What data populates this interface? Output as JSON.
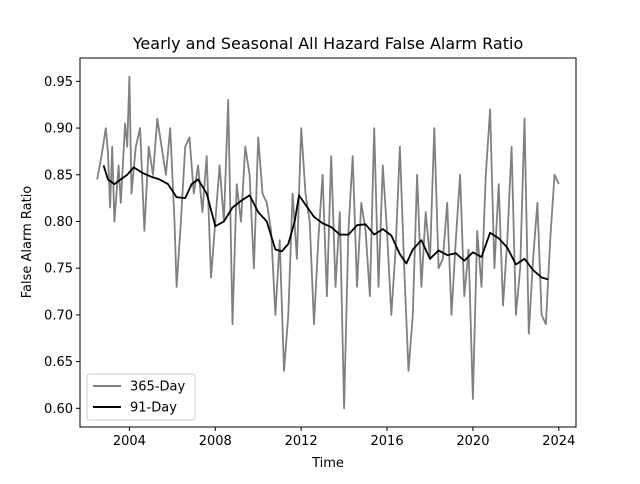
{
  "chart_data": {
    "type": "line",
    "title": "Yearly and Seasonal All Hazard False Alarm Ratio",
    "xlabel": "Time",
    "ylabel": "False Alarm Ratio",
    "xlim": [
      2001.7,
      2024.8
    ],
    "ylim": [
      0.58,
      0.975
    ],
    "x_ticks": [
      2004,
      2008,
      2012,
      2016,
      2020,
      2024
    ],
    "x_tick_labels": [
      "2004",
      "2008",
      "2012",
      "2016",
      "2020",
      "2024"
    ],
    "y_ticks": [
      0.6,
      0.65,
      0.7,
      0.75,
      0.8,
      0.85,
      0.9,
      0.95
    ],
    "y_tick_labels": [
      "0.60",
      "0.65",
      "0.70",
      "0.75",
      "0.80",
      "0.85",
      "0.90",
      "0.95"
    ],
    "grid": false,
    "legend_position": "lower-left",
    "series": [
      {
        "name": "365-Day",
        "color": "#808080",
        "x": [
          2002.5,
          2002.7,
          2002.9,
          2003.0,
          2003.1,
          2003.2,
          2003.3,
          2003.5,
          2003.6,
          2003.8,
          2003.9,
          2004.0,
          2004.1,
          2004.3,
          2004.5,
          2004.7,
          2004.9,
          2005.1,
          2005.3,
          2005.5,
          2005.7,
          2005.9,
          2006.1,
          2006.2,
          2006.4,
          2006.6,
          2006.8,
          2007.0,
          2007.2,
          2007.4,
          2007.6,
          2007.8,
          2008.0,
          2008.2,
          2008.4,
          2008.6,
          2008.8,
          2009.0,
          2009.2,
          2009.4,
          2009.6,
          2009.8,
          2010.0,
          2010.2,
          2010.4,
          2010.6,
          2010.8,
          2011.0,
          2011.2,
          2011.4,
          2011.6,
          2011.8,
          2012.0,
          2012.2,
          2012.4,
          2012.6,
          2012.8,
          2013.0,
          2013.2,
          2013.4,
          2013.6,
          2013.8,
          2014.0,
          2014.2,
          2014.4,
          2014.6,
          2014.8,
          2015.0,
          2015.2,
          2015.4,
          2015.6,
          2015.8,
          2016.0,
          2016.2,
          2016.4,
          2016.6,
          2016.8,
          2017.0,
          2017.2,
          2017.4,
          2017.6,
          2017.8,
          2018.0,
          2018.2,
          2018.4,
          2018.6,
          2018.8,
          2019.0,
          2019.2,
          2019.4,
          2019.6,
          2019.8,
          2020.0,
          2020.2,
          2020.4,
          2020.6,
          2020.8,
          2021.0,
          2021.2,
          2021.4,
          2021.6,
          2021.8,
          2022.0,
          2022.2,
          2022.4,
          2022.6,
          2022.8,
          2023.0,
          2023.2,
          2023.4,
          2023.6,
          2023.8,
          2024.0
        ],
        "values": [
          0.845,
          0.87,
          0.9,
          0.875,
          0.815,
          0.88,
          0.8,
          0.86,
          0.82,
          0.905,
          0.88,
          0.955,
          0.83,
          0.88,
          0.9,
          0.79,
          0.88,
          0.85,
          0.91,
          0.88,
          0.85,
          0.9,
          0.8,
          0.73,
          0.8,
          0.88,
          0.89,
          0.83,
          0.86,
          0.81,
          0.87,
          0.74,
          0.8,
          0.86,
          0.8,
          0.93,
          0.69,
          0.84,
          0.8,
          0.88,
          0.85,
          0.75,
          0.89,
          0.83,
          0.82,
          0.79,
          0.7,
          0.78,
          0.64,
          0.7,
          0.83,
          0.76,
          0.9,
          0.83,
          0.8,
          0.69,
          0.78,
          0.85,
          0.72,
          0.87,
          0.73,
          0.81,
          0.6,
          0.79,
          0.87,
          0.73,
          0.82,
          0.79,
          0.72,
          0.9,
          0.73,
          0.86,
          0.79,
          0.7,
          0.77,
          0.88,
          0.75,
          0.64,
          0.7,
          0.85,
          0.73,
          0.81,
          0.76,
          0.9,
          0.75,
          0.76,
          0.82,
          0.7,
          0.78,
          0.85,
          0.72,
          0.77,
          0.61,
          0.79,
          0.73,
          0.85,
          0.92,
          0.75,
          0.84,
          0.71,
          0.78,
          0.88,
          0.7,
          0.75,
          0.91,
          0.68,
          0.76,
          0.82,
          0.7,
          0.69,
          0.78,
          0.85,
          0.84
        ],
        "x_max": 2023.8
      },
      {
        "name": "91-Day",
        "color": "#000000",
        "x": [
          2002.8,
          2003.0,
          2003.3,
          2003.6,
          2003.9,
          2004.2,
          2004.6,
          2005.0,
          2005.4,
          2005.8,
          2006.2,
          2006.6,
          2006.9,
          2007.2,
          2007.6,
          2008.0,
          2008.4,
          2008.8,
          2009.2,
          2009.6,
          2010.0,
          2010.4,
          2010.8,
          2011.1,
          2011.4,
          2011.7,
          2011.9,
          2012.2,
          2012.6,
          2013.0,
          2013.4,
          2013.8,
          2014.2,
          2014.6,
          2015.0,
          2015.4,
          2015.8,
          2016.2,
          2016.6,
          2016.9,
          2017.2,
          2017.6,
          2018.0,
          2018.4,
          2018.8,
          2019.2,
          2019.6,
          2020.0,
          2020.4,
          2020.8,
          2021.2,
          2021.6,
          2022.0,
          2022.4,
          2022.8,
          2023.2,
          2023.5
        ],
        "values": [
          0.86,
          0.845,
          0.84,
          0.845,
          0.85,
          0.858,
          0.852,
          0.848,
          0.845,
          0.84,
          0.826,
          0.825,
          0.84,
          0.845,
          0.83,
          0.795,
          0.8,
          0.815,
          0.822,
          0.828,
          0.81,
          0.8,
          0.77,
          0.768,
          0.776,
          0.8,
          0.828,
          0.818,
          0.805,
          0.798,
          0.794,
          0.786,
          0.786,
          0.796,
          0.797,
          0.786,
          0.792,
          0.785,
          0.765,
          0.755,
          0.77,
          0.78,
          0.76,
          0.769,
          0.764,
          0.766,
          0.758,
          0.767,
          0.762,
          0.788,
          0.782,
          0.772,
          0.754,
          0.76,
          0.748,
          0.74,
          0.738
        ]
      }
    ]
  }
}
